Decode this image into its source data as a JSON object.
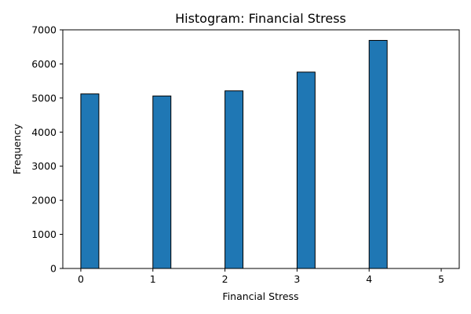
{
  "chart_data": {
    "type": "bar",
    "title": "Histogram: Financial Stress",
    "xlabel": "Financial Stress",
    "ylabel": "Frequency",
    "xlim": [
      -0.25,
      5.25
    ],
    "ylim": [
      0,
      7000
    ],
    "xticks": [
      "0",
      "1",
      "2",
      "3",
      "4",
      "5"
    ],
    "yticks": [
      "0",
      "1000",
      "2000",
      "3000",
      "4000",
      "5000",
      "6000",
      "7000"
    ],
    "bins": [
      {
        "x": 0,
        "value": 5120
      },
      {
        "x": 1,
        "value": 5060
      },
      {
        "x": 2,
        "value": 5210
      },
      {
        "x": 3,
        "value": 5760
      },
      {
        "x": 4,
        "value": 6690
      }
    ],
    "bar_width": 0.25,
    "bar_color": "#1f77b4",
    "grid": false
  }
}
